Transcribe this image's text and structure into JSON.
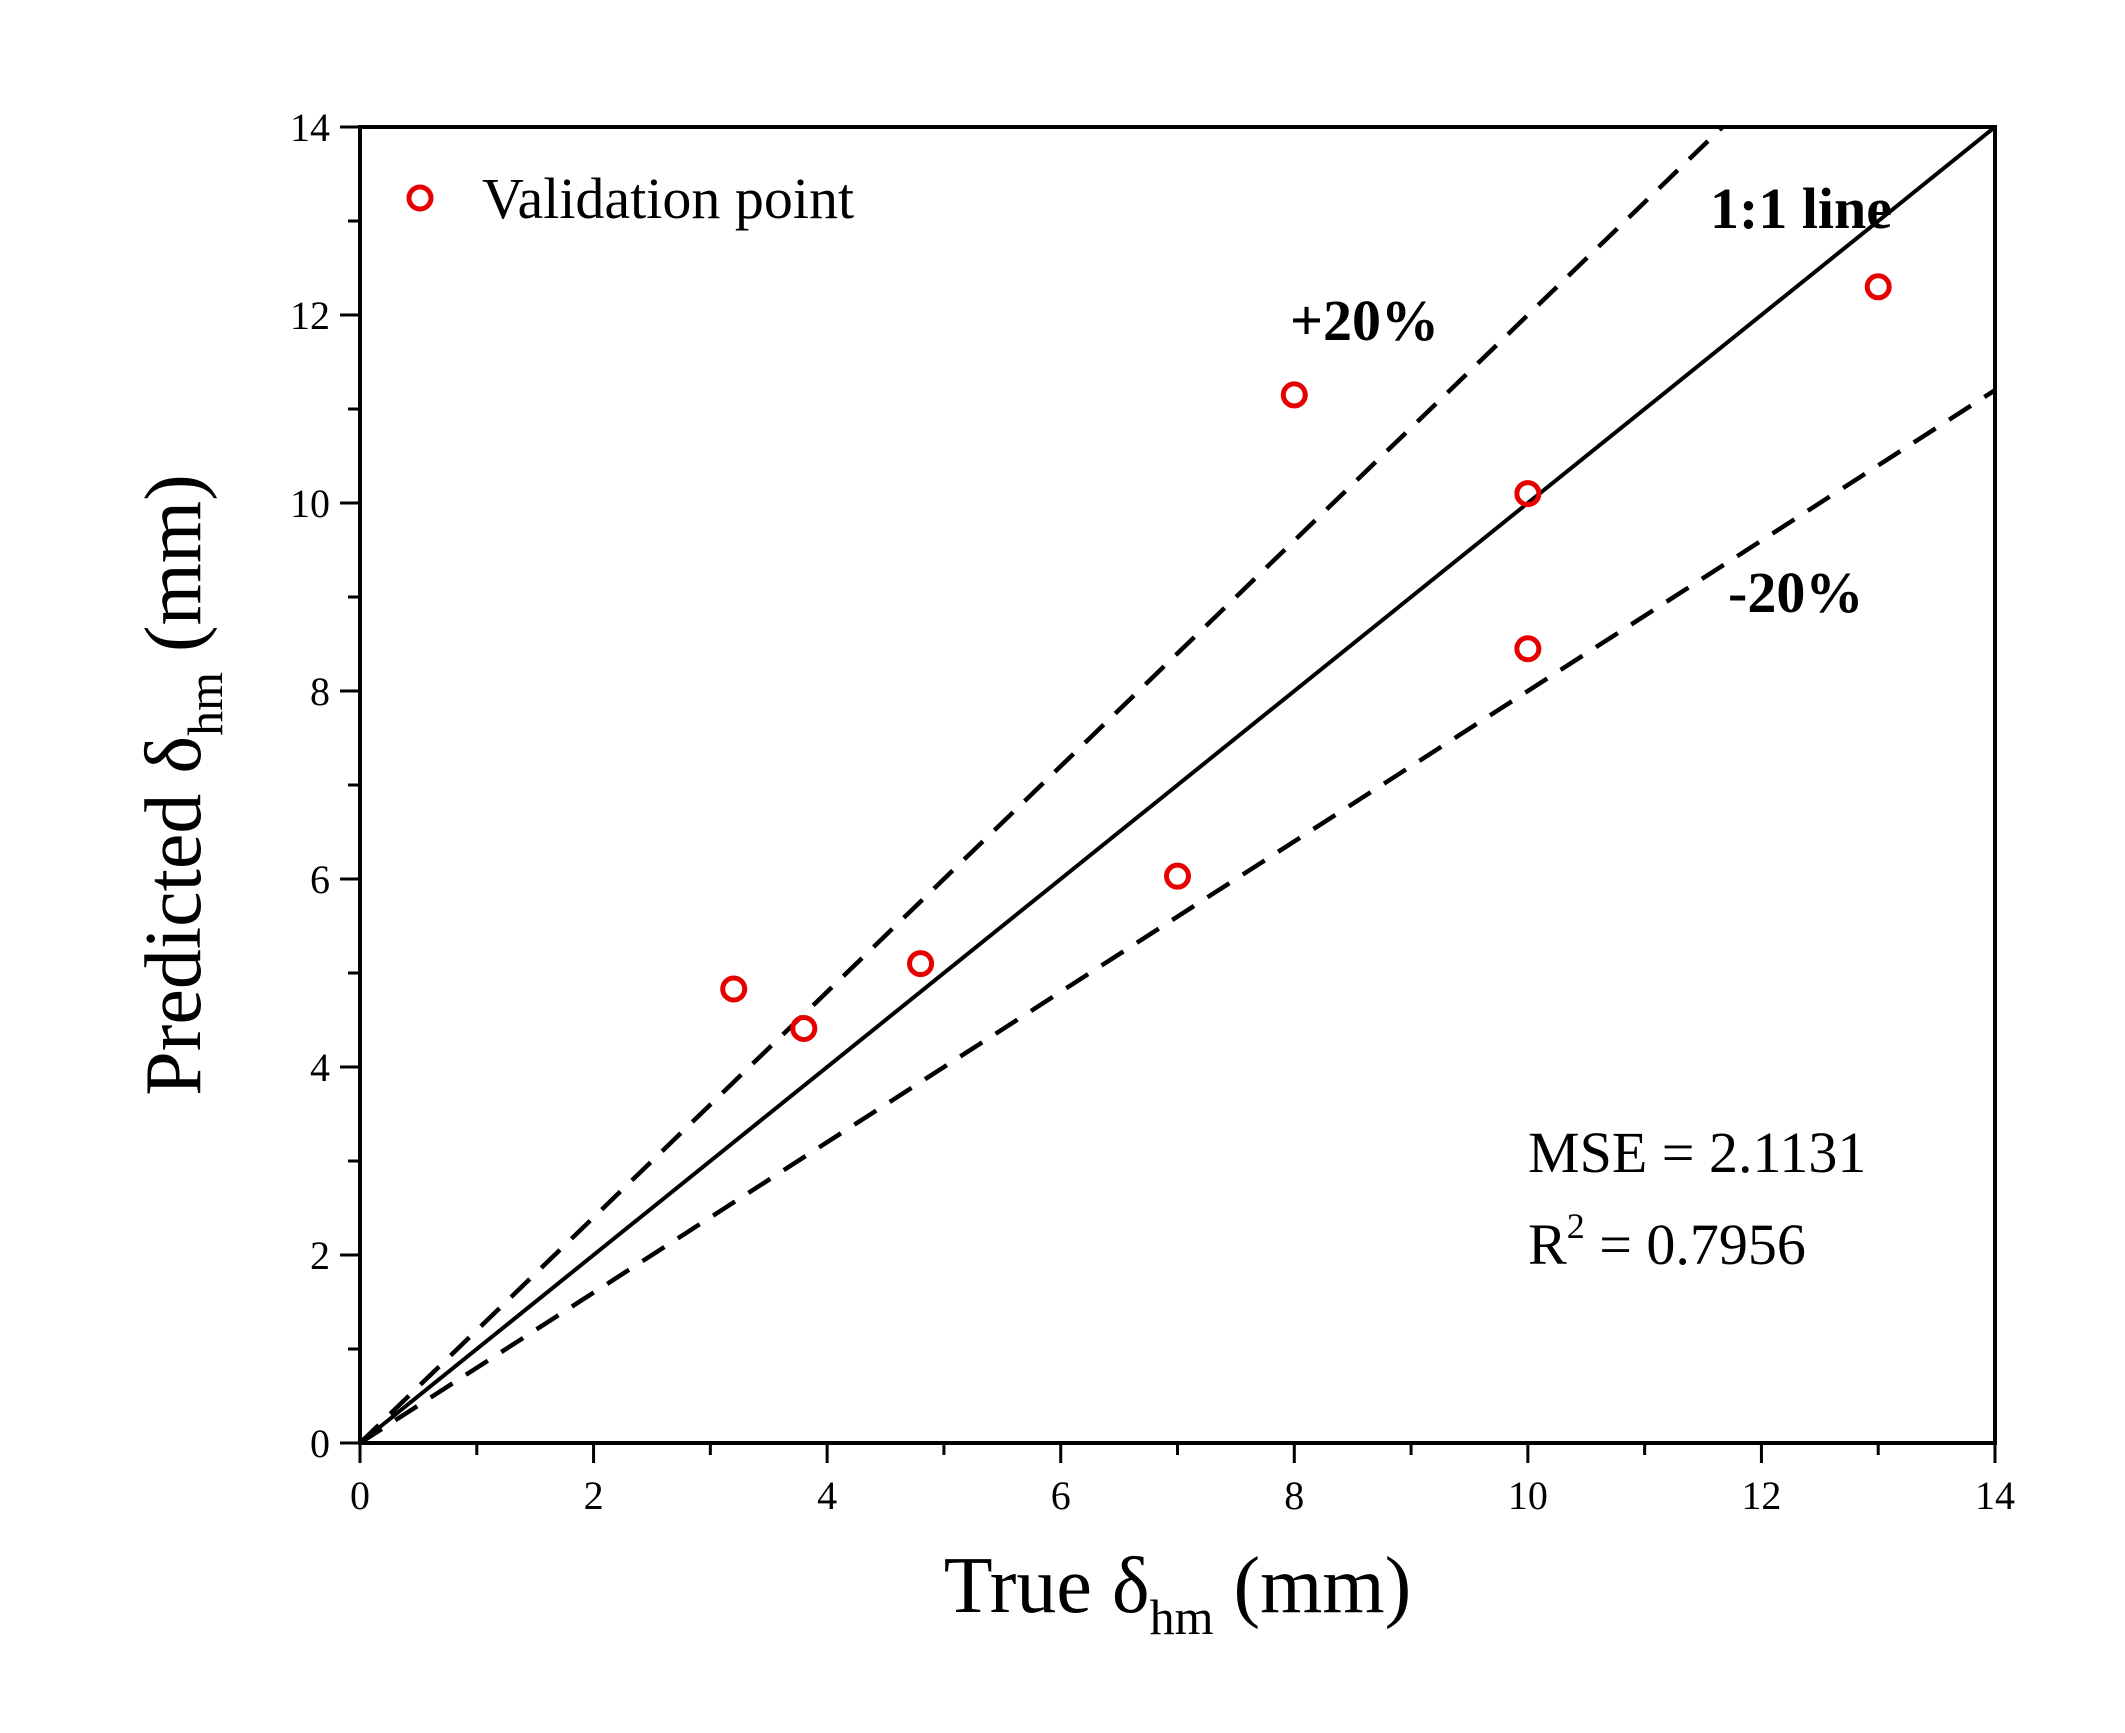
{
  "chart_data": {
    "type": "scatter",
    "xlabel": {
      "main": "True δ",
      "sub": "hm",
      "unit": " (mm)"
    },
    "ylabel": {
      "main": "Predicted δ",
      "sub": "hm",
      "unit": " (mm)"
    },
    "xlim": [
      0,
      14
    ],
    "ylim": [
      0,
      14
    ],
    "x_major_ticks": [
      "0",
      "2",
      "4",
      "6",
      "8",
      "10",
      "12",
      "14"
    ],
    "y_major_ticks": [
      "0",
      "2",
      "4",
      "6",
      "8",
      "10",
      "12",
      "14"
    ],
    "minor_tick_step": 1,
    "grid": false,
    "legend": {
      "position": "top-left",
      "entries": [
        "Validation point"
      ]
    },
    "series": [
      {
        "name": "Validation point",
        "marker": "open-circle",
        "color": "#e60000",
        "points": [
          {
            "x": 3.2,
            "y": 4.83
          },
          {
            "x": 3.8,
            "y": 4.41
          },
          {
            "x": 4.8,
            "y": 5.1
          },
          {
            "x": 7.0,
            "y": 6.03
          },
          {
            "x": 8.0,
            "y": 11.15
          },
          {
            "x": 10.0,
            "y": 10.1
          },
          {
            "x": 10.0,
            "y": 8.45
          },
          {
            "x": 13.0,
            "y": 12.3
          }
        ]
      }
    ],
    "reference_lines": [
      {
        "label": "1:1 line",
        "slope": 1.0,
        "style": "solid"
      },
      {
        "label": "+20%",
        "slope": 1.2,
        "style": "dashed"
      },
      {
        "label": "-20%",
        "slope": 0.8,
        "style": "dashed"
      }
    ],
    "annotations": {
      "mse": "MSE = 2.1131",
      "r2_prefix": "R",
      "r2_sup": "2",
      "r2_value": " = 0.7956"
    }
  }
}
